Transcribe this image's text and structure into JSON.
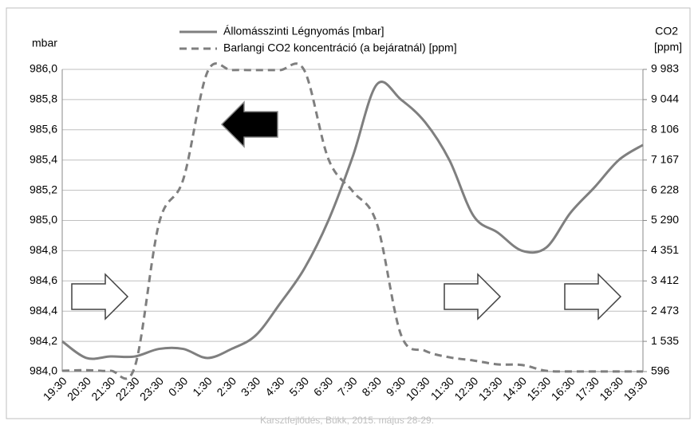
{
  "chart_data": {
    "type": "line",
    "ylabel": "mbar",
    "y2label": [
      "CO2",
      "[ppm]"
    ],
    "caption": "Karsztfejlődés, Bükk, 2015. május 28-29.",
    "categories": [
      "19:30",
      "20:30",
      "21:30",
      "22:30",
      "23:30",
      "0:30",
      "1:30",
      "2:30",
      "3:30",
      "4:30",
      "5:30",
      "6:30",
      "7:30",
      "8:30",
      "9:30",
      "10:30",
      "11:30",
      "12:30",
      "13:30",
      "14:30",
      "15:30",
      "16:30",
      "17:30",
      "18:30",
      "19:30"
    ],
    "series": [
      {
        "name": "Állomásszinti Légnyomás [mbar]",
        "color": "#7f7f7f",
        "dash": false,
        "values": [
          984.2,
          984.09,
          984.1,
          984.1,
          984.15,
          984.15,
          984.09,
          984.15,
          984.24,
          984.45,
          984.68,
          985.0,
          985.42,
          985.9,
          985.8,
          985.65,
          985.4,
          985.03,
          984.92,
          984.8,
          984.82,
          985.05,
          985.22,
          985.4,
          985.5
        ]
      },
      {
        "name": "Barlangi CO2 koncentráció (a bejáratnál) [ppm]",
        "color": "#7f7f7f",
        "dash": true,
        "axis": "y2",
        "values": [
          620,
          640,
          620,
          745,
          5200,
          6560,
          9900,
          9960,
          9960,
          9960,
          9960,
          7200,
          6200,
          5200,
          1740,
          1240,
          1040,
          940,
          820,
          800,
          620,
          600,
          600,
          600,
          600
        ]
      }
    ],
    "ylim": [
      984.0,
      986.0
    ],
    "yticks": [
      {
        "value": 984.0,
        "label": "984,0"
      },
      {
        "value": 984.2,
        "label": "984,2"
      },
      {
        "value": 984.4,
        "label": "984,4"
      },
      {
        "value": 984.6,
        "label": "984,6"
      },
      {
        "value": 984.8,
        "label": "984,8"
      },
      {
        "value": 985.0,
        "label": "985,0"
      },
      {
        "value": 985.2,
        "label": "985,2"
      },
      {
        "value": 985.4,
        "label": "985,4"
      },
      {
        "value": 985.6,
        "label": "985,6"
      },
      {
        "value": 985.8,
        "label": "985,8"
      },
      {
        "value": 986.0,
        "label": "986,0"
      }
    ],
    "y2lim": [
      596,
      9983
    ],
    "y2ticks": [
      596,
      {
        "value": 1535,
        "label": "1 535"
      },
      {
        "value": 2473,
        "label": "2 473"
      },
      {
        "value": 3412,
        "label": "3 412"
      },
      {
        "value": 4351,
        "label": "4 351"
      },
      {
        "value": 5290,
        "label": "5 290"
      },
      {
        "value": 6228,
        "label": "6 228"
      },
      {
        "value": 7167,
        "label": "7 167"
      },
      {
        "value": 8106,
        "label": "8 106"
      },
      {
        "value": 9044,
        "label": "9 044"
      },
      {
        "value": 9983,
        "label": "9 983"
      }
    ],
    "grid": true,
    "legend": "top"
  }
}
